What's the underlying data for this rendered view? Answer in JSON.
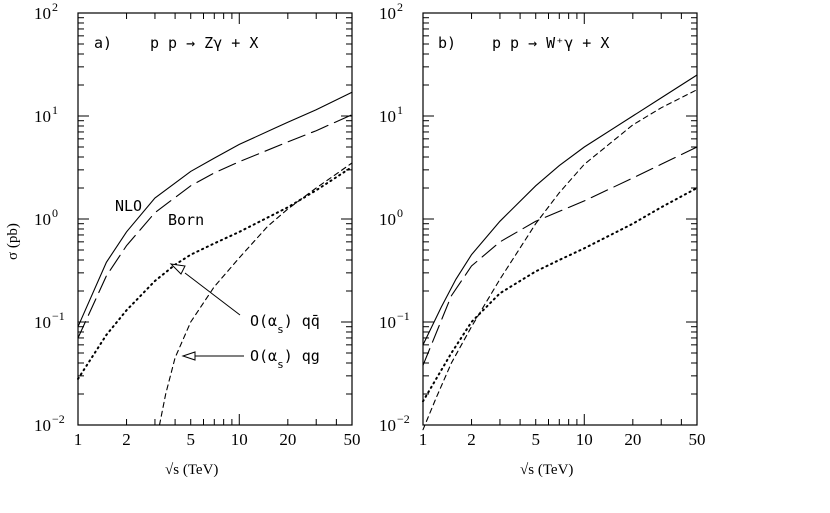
{
  "chart_data": [
    {
      "type": "line",
      "panel_label": "a)",
      "process": "p p → Zγ + X",
      "xlabel": "√s (TeV)",
      "ylabel": "σ (pb)",
      "x_scale": "log",
      "y_scale": "log",
      "xlim": [
        1,
        50
      ],
      "ylim": [
        0.01,
        100
      ],
      "x_ticks": [
        "1",
        "2",
        "5",
        "10",
        "20",
        "50"
      ],
      "y_tick_mantissa": "10",
      "y_tick_exponents": [
        "−2",
        "−1",
        "0",
        "1",
        "2"
      ],
      "annotations": [
        {
          "text": "NLO"
        },
        {
          "text": "Born"
        },
        {
          "text": "O(α_s) qq̄"
        },
        {
          "text": "O(α_s) qg"
        }
      ],
      "series": [
        {
          "style": "solid",
          "x": [
            1,
            1.5,
            2,
            3,
            5,
            7,
            10,
            20,
            30,
            50
          ],
          "y": [
            0.09,
            0.38,
            0.75,
            1.6,
            2.9,
            3.9,
            5.3,
            8.7,
            11.5,
            17
          ]
        },
        {
          "style": "long-dash",
          "x": [
            1,
            1.5,
            2,
            3,
            5,
            7,
            10,
            20,
            30,
            50
          ],
          "y": [
            0.07,
            0.28,
            0.55,
            1.15,
            2.1,
            2.8,
            3.6,
            5.6,
            7.2,
            10.3
          ]
        },
        {
          "style": "dotted",
          "x": [
            1,
            1.5,
            2,
            3,
            4,
            5,
            7,
            10,
            20,
            30,
            50
          ],
          "y": [
            0.028,
            0.075,
            0.13,
            0.25,
            0.36,
            0.45,
            0.58,
            0.75,
            1.3,
            1.9,
            3.2
          ]
        },
        {
          "style": "short-dash",
          "x": [
            3.2,
            3.5,
            4,
            5,
            7,
            10,
            15,
            20,
            30,
            50
          ],
          "y": [
            0.01,
            0.02,
            0.045,
            0.1,
            0.22,
            0.42,
            0.85,
            1.25,
            2.0,
            3.5
          ]
        }
      ]
    },
    {
      "type": "line",
      "panel_label": "b)",
      "process": "p p → W⁺γ + X",
      "xlabel": "√s (TeV)",
      "x_scale": "log",
      "y_scale": "log",
      "xlim": [
        1,
        50
      ],
      "ylim": [
        0.01,
        100
      ],
      "x_ticks": [
        "1",
        "2",
        "5",
        "10",
        "20",
        "50"
      ],
      "y_tick_mantissa": "10",
      "y_tick_exponents": [
        "−2",
        "−1",
        "0",
        "1",
        "2"
      ],
      "series": [
        {
          "style": "solid",
          "x": [
            1,
            1.3,
            1.6,
            2,
            3,
            5,
            7,
            10,
            20,
            30,
            50
          ],
          "y": [
            0.06,
            0.14,
            0.26,
            0.45,
            0.95,
            2.1,
            3.3,
            5.0,
            10,
            15,
            25
          ]
        },
        {
          "style": "long-dash",
          "x": [
            1,
            1.5,
            2,
            3,
            5,
            10,
            20,
            30,
            50
          ],
          "y": [
            0.038,
            0.18,
            0.35,
            0.6,
            0.95,
            1.5,
            2.5,
            3.4,
            5.0
          ]
        },
        {
          "style": "dotted",
          "x": [
            1,
            1.5,
            2,
            3,
            5,
            7,
            10,
            20,
            30,
            50
          ],
          "y": [
            0.017,
            0.05,
            0.1,
            0.19,
            0.31,
            0.4,
            0.52,
            0.9,
            1.3,
            2.0
          ]
        },
        {
          "style": "short-dash",
          "x": [
            1,
            1.2,
            1.5,
            2,
            3,
            5,
            7,
            10,
            20,
            30,
            50
          ],
          "y": [
            0.009,
            0.018,
            0.04,
            0.09,
            0.26,
            0.9,
            1.8,
            3.4,
            8.2,
            12,
            18
          ]
        }
      ]
    }
  ]
}
